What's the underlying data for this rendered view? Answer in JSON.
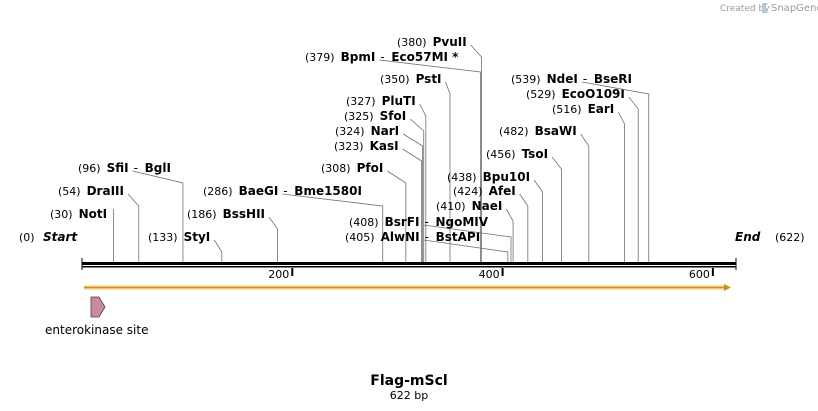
{
  "brand": {
    "created_by": "Created by",
    "name": "SnapGene"
  },
  "sequence": {
    "name": "Flag-mScl",
    "length_label": "622 bp",
    "length": 622
  },
  "ends": {
    "start": {
      "pos": "(0)",
      "label": "Start"
    },
    "end": {
      "pos": "(622)",
      "label": "End"
    }
  },
  "ruler": {
    "ticks": [
      {
        "value": 200,
        "label": "200"
      },
      {
        "value": 400,
        "label": "400"
      },
      {
        "value": 600,
        "label": "600"
      }
    ]
  },
  "features": [
    {
      "name": "enterokinase site",
      "start": 3,
      "end": 18,
      "color": "#c98aa0"
    }
  ],
  "orf": {
    "color": "#f2c46d",
    "arrow": "#c8901e"
  },
  "sites": [
    {
      "pos": 30,
      "pos_label": "(30)",
      "parts": [
        "NotI"
      ]
    },
    {
      "pos": 54,
      "pos_label": "(54)",
      "parts": [
        "DraIII"
      ]
    },
    {
      "pos": 96,
      "pos_label": "(96)",
      "parts": [
        "SfiI",
        "BglI"
      ]
    },
    {
      "pos": 133,
      "pos_label": "(133)",
      "parts": [
        "StyI"
      ]
    },
    {
      "pos": 186,
      "pos_label": "(186)",
      "parts": [
        "BssHII"
      ]
    },
    {
      "pos": 286,
      "pos_label": "(286)",
      "parts": [
        "BaeGI",
        "Bme1580I"
      ]
    },
    {
      "pos": 308,
      "pos_label": "(308)",
      "parts": [
        "PfoI"
      ]
    },
    {
      "pos": 323,
      "pos_label": "(323)",
      "parts": [
        "KasI"
      ]
    },
    {
      "pos": 324,
      "pos_label": "(324)",
      "parts": [
        "NarI"
      ]
    },
    {
      "pos": 325,
      "pos_label": "(325)",
      "parts": [
        "SfoI"
      ]
    },
    {
      "pos": 327,
      "pos_label": "(327)",
      "parts": [
        "PluTI"
      ]
    },
    {
      "pos": 350,
      "pos_label": "(350)",
      "parts": [
        "PstI"
      ]
    },
    {
      "pos": 379,
      "pos_label": "(379)",
      "parts": [
        "BpmI",
        "Eco57MI *"
      ]
    },
    {
      "pos": 380,
      "pos_label": "(380)",
      "parts": [
        "PvuII"
      ]
    },
    {
      "pos": 405,
      "pos_label": "(405)",
      "parts": [
        "AlwNI",
        "BstAPI"
      ]
    },
    {
      "pos": 408,
      "pos_label": "(408)",
      "parts": [
        "BsrFI",
        "NgoMIV"
      ]
    },
    {
      "pos": 410,
      "pos_label": "(410)",
      "parts": [
        "NaeI"
      ]
    },
    {
      "pos": 424,
      "pos_label": "(424)",
      "parts": [
        "AfeI"
      ]
    },
    {
      "pos": 438,
      "pos_label": "(438)",
      "parts": [
        "Bpu10I"
      ]
    },
    {
      "pos": 456,
      "pos_label": "(456)",
      "parts": [
        "TsoI"
      ]
    },
    {
      "pos": 482,
      "pos_label": "(482)",
      "parts": [
        "BsaWI"
      ]
    },
    {
      "pos": 516,
      "pos_label": "(516)",
      "parts": [
        "EarI"
      ]
    },
    {
      "pos": 529,
      "pos_label": "(529)",
      "parts": [
        "EcoO109I"
      ]
    },
    {
      "pos": 539,
      "pos_label": "(539)",
      "parts": [
        "NdeI",
        "BseRI"
      ]
    }
  ]
}
